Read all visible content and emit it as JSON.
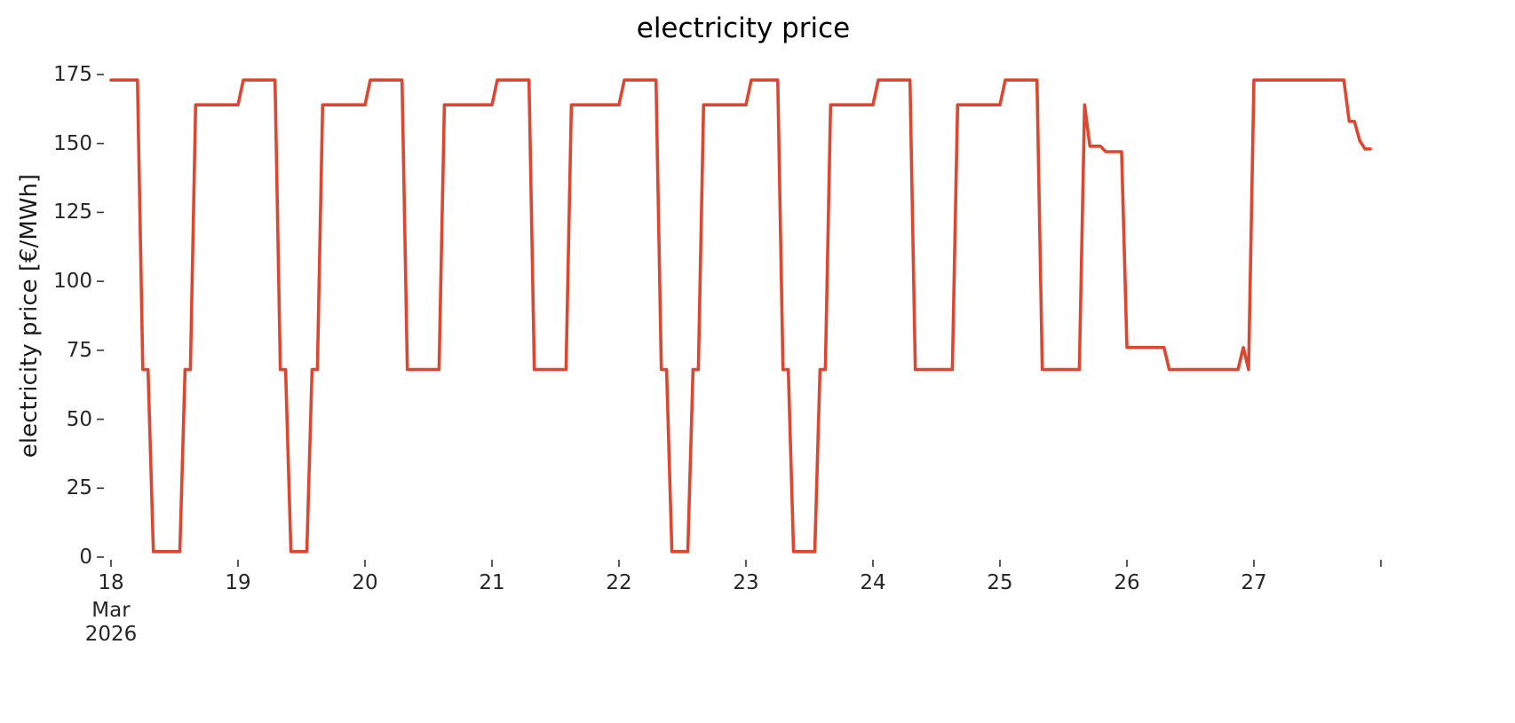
{
  "chart_data": {
    "type": "line",
    "title": "electricity price",
    "ylabel": "electricity price [€/MWh]",
    "xlabel": "",
    "line_color": "#dd4631",
    "tick_color": "#333333",
    "background": "#ffffff",
    "grid": false,
    "legend": "none",
    "ylim": [
      0,
      175
    ],
    "yticks": [
      0,
      25,
      50,
      75,
      100,
      125,
      150,
      175
    ],
    "xticks": [
      {
        "day": 18,
        "label": "18",
        "sub": [
          "Mar",
          "2026"
        ]
      },
      {
        "day": 19,
        "label": "19"
      },
      {
        "day": 20,
        "label": "20"
      },
      {
        "day": 21,
        "label": "21"
      },
      {
        "day": 22,
        "label": "22"
      },
      {
        "day": 23,
        "label": "23"
      },
      {
        "day": 24,
        "label": "24"
      },
      {
        "day": 25,
        "label": "25"
      },
      {
        "day": 26,
        "label": "26"
      },
      {
        "day": 27,
        "label": "27"
      },
      {
        "day": 28,
        "label": ""
      }
    ],
    "x_unit": "day of March 2026",
    "series": [
      {
        "name": "electricity price",
        "start_day": 18,
        "step_hours": 1,
        "values": [
          173,
          173,
          173,
          173,
          173,
          173,
          68,
          68,
          2,
          2,
          2,
          2,
          2,
          2,
          68,
          68,
          164,
          164,
          164,
          164,
          164,
          164,
          164,
          164,
          164,
          173,
          173,
          173,
          173,
          173,
          173,
          173,
          68,
          68,
          2,
          2,
          2,
          2,
          68,
          68,
          164,
          164,
          164,
          164,
          164,
          164,
          164,
          164,
          164,
          173,
          173,
          173,
          173,
          173,
          173,
          173,
          68,
          68,
          68,
          68,
          68,
          68,
          68,
          164,
          164,
          164,
          164,
          164,
          164,
          164,
          164,
          164,
          164,
          173,
          173,
          173,
          173,
          173,
          173,
          173,
          68,
          68,
          68,
          68,
          68,
          68,
          68,
          164,
          164,
          164,
          164,
          164,
          164,
          164,
          164,
          164,
          164,
          173,
          173,
          173,
          173,
          173,
          173,
          173,
          68,
          68,
          2,
          2,
          2,
          2,
          68,
          68,
          164,
          164,
          164,
          164,
          164,
          164,
          164,
          164,
          164,
          173,
          173,
          173,
          173,
          173,
          173,
          68,
          68,
          2,
          2,
          2,
          2,
          2,
          68,
          68,
          164,
          164,
          164,
          164,
          164,
          164,
          164,
          164,
          164,
          173,
          173,
          173,
          173,
          173,
          173,
          173,
          68,
          68,
          68,
          68,
          68,
          68,
          68,
          68,
          164,
          164,
          164,
          164,
          164,
          164,
          164,
          164,
          164,
          173,
          173,
          173,
          173,
          173,
          173,
          173,
          68,
          68,
          68,
          68,
          68,
          68,
          68,
          68,
          164,
          149,
          149,
          149,
          147,
          147,
          147,
          147,
          76,
          76,
          76,
          76,
          76,
          76,
          76,
          76,
          68,
          68,
          68,
          68,
          68,
          68,
          68,
          68,
          68,
          68,
          68,
          68,
          68,
          68,
          76,
          68,
          173,
          173,
          173,
          173,
          173,
          173,
          173,
          173,
          173,
          173,
          173,
          173,
          173,
          173,
          173,
          173,
          173,
          173,
          158,
          158,
          151,
          148,
          148
        ]
      }
    ]
  }
}
